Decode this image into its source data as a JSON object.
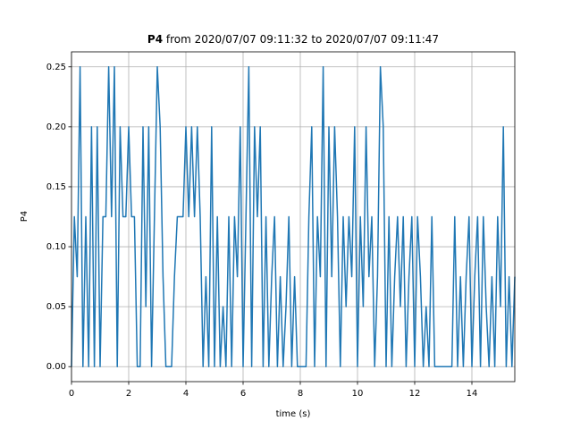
{
  "chart_data": {
    "type": "line",
    "title_variable": "P4",
    "title": "from 2020/07/07 09:11:32 to 2020/07/07 09:11:47",
    "xlabel": "time (s)",
    "ylabel": "P4",
    "color": "#1f77b4",
    "grid": true,
    "xlim": [
      0,
      15.5
    ],
    "ylim": [
      -0.0125,
      0.2625
    ],
    "xticks": [
      0,
      2,
      4,
      6,
      8,
      10,
      12,
      14
    ],
    "yticks": [
      {
        "value": 0,
        "label": "0.00"
      },
      {
        "value": 0.05,
        "label": "0.05"
      },
      {
        "value": 0.1,
        "label": "0.10"
      },
      {
        "value": 0.15,
        "label": "0.15"
      },
      {
        "value": 0.2,
        "label": "0.20"
      },
      {
        "value": 0.25,
        "label": "0.25"
      }
    ],
    "x": [
      0,
      0.1,
      0.2,
      0.3,
      0.4,
      0.5,
      0.6,
      0.7,
      0.8,
      0.9,
      1,
      1.1,
      1.2,
      1.3,
      1.4,
      1.5,
      1.6,
      1.7,
      1.8,
      1.9,
      2,
      2.1,
      2.2,
      2.3,
      2.4,
      2.5,
      2.6,
      2.7,
      2.8,
      2.9,
      3,
      3.1,
      3.2,
      3.3,
      3.4,
      3.5,
      3.6,
      3.7,
      3.8,
      3.9,
      4,
      4.1,
      4.2,
      4.3,
      4.4,
      4.5,
      4.6,
      4.7,
      4.8,
      4.9,
      5,
      5.1,
      5.2,
      5.3,
      5.4,
      5.5,
      5.6,
      5.7,
      5.8,
      5.9,
      6,
      6.1,
      6.2,
      6.3,
      6.4,
      6.5,
      6.6,
      6.7,
      6.8,
      6.9,
      7,
      7.1,
      7.2,
      7.3,
      7.4,
      7.5,
      7.6,
      7.7,
      7.8,
      7.9,
      8,
      8.1,
      8.2,
      8.3,
      8.4,
      8.5,
      8.6,
      8.7,
      8.8,
      8.9,
      9,
      9.1,
      9.2,
      9.3,
      9.4,
      9.5,
      9.6,
      9.7,
      9.8,
      9.9,
      10,
      10.1,
      10.2,
      10.3,
      10.4,
      10.5,
      10.6,
      10.7,
      10.8,
      10.9,
      11,
      11.1,
      11.2,
      11.3,
      11.4,
      11.5,
      11.6,
      11.7,
      11.8,
      11.9,
      12,
      12.1,
      12.2,
      12.3,
      12.4,
      12.5,
      12.6,
      12.7,
      12.8,
      12.9,
      13,
      13.1,
      13.2,
      13.3,
      13.4,
      13.5,
      13.6,
      13.7,
      13.8,
      13.9,
      14,
      14.1,
      14.2,
      14.3,
      14.4,
      14.5,
      14.6,
      14.7,
      14.8,
      14.9,
      15,
      15.1,
      15.2,
      15.3,
      15.4,
      15.5
    ],
    "values": [
      0,
      0.125,
      0.075,
      0.25,
      0,
      0.125,
      0,
      0.2,
      0,
      0.2,
      0,
      0.125,
      0.125,
      0.25,
      0.125,
      0.25,
      0,
      0.2,
      0.125,
      0.125,
      0.2,
      0.125,
      0.125,
      0,
      0,
      0.2,
      0.05,
      0.2,
      0,
      0.125,
      0.25,
      0.2,
      0.075,
      0,
      0,
      0,
      0.075,
      0.125,
      0.125,
      0.125,
      0.2,
      0.125,
      0.2,
      0.125,
      0.2,
      0.125,
      0,
      0.075,
      0,
      0.2,
      0,
      0.125,
      0,
      0.05,
      0,
      0.125,
      0,
      0.125,
      0.075,
      0.2,
      0,
      0.125,
      0.25,
      0,
      0.2,
      0.125,
      0.2,
      0,
      0.125,
      0,
      0.075,
      0.125,
      0,
      0.075,
      0,
      0.05,
      0.125,
      0,
      0.075,
      0,
      0,
      0,
      0,
      0.125,
      0.2,
      0,
      0.125,
      0.075,
      0.25,
      0,
      0.2,
      0.075,
      0.2,
      0.125,
      0,
      0.125,
      0.05,
      0.125,
      0.075,
      0.2,
      0,
      0.125,
      0.05,
      0.2,
      0.075,
      0.125,
      0,
      0.075,
      0.25,
      0.2,
      0,
      0.125,
      0,
      0.075,
      0.125,
      0.05,
      0.125,
      0,
      0.075,
      0.125,
      0,
      0.125,
      0.075,
      0,
      0.05,
      0,
      0.125,
      0,
      0,
      0,
      0,
      0,
      0,
      0,
      0.125,
      0,
      0.075,
      0,
      0.075,
      0.125,
      0,
      0.075,
      0.125,
      0,
      0.125,
      0.05,
      0,
      0.075,
      0,
      0.125,
      0.05,
      0.2,
      0,
      0.075,
      0,
      0.075
    ]
  }
}
